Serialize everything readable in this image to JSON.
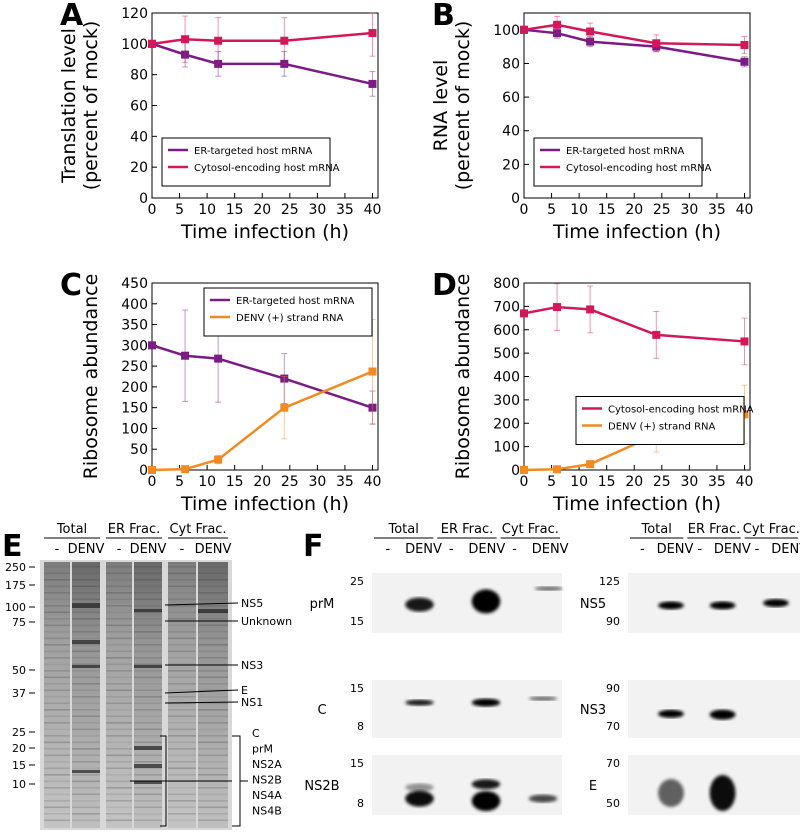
{
  "chart_data": [
    {
      "type": "line",
      "panel_label": "A",
      "ylabel": [
        "Translation level",
        "(percent of mock)"
      ],
      "xlabel": "Time infection (h)",
      "x": [
        0,
        6,
        12,
        24,
        40
      ],
      "xlim": [
        0,
        41
      ],
      "xticks": [
        0,
        5,
        10,
        15,
        20,
        25,
        30,
        35,
        40
      ],
      "ylim": [
        0,
        120
      ],
      "yticks": [
        0,
        20,
        40,
        60,
        80,
        100,
        120
      ],
      "grid": false,
      "legend": "lower left",
      "series": [
        {
          "name": "ER-targeted host mRNA",
          "color": "#7a1b86",
          "values": [
            100,
            93,
            87,
            87,
            74
          ],
          "errors": [
            0,
            8,
            8,
            8,
            8
          ]
        },
        {
          "name": "Cytosol-encoding host mRNA",
          "color": "#d2185b",
          "values": [
            100,
            103,
            102,
            102,
            107
          ],
          "errors": [
            0,
            15,
            15,
            15,
            15
          ]
        }
      ]
    },
    {
      "type": "line",
      "panel_label": "B",
      "ylabel": [
        "RNA level",
        "(percent of mock)"
      ],
      "xlabel": "Time infection (h)",
      "x": [
        0,
        6,
        12,
        24,
        40
      ],
      "xlim": [
        0,
        41
      ],
      "xticks": [
        0,
        5,
        10,
        15,
        20,
        25,
        30,
        35,
        40
      ],
      "ylim": [
        0,
        110
      ],
      "yticks": [
        0,
        20,
        40,
        60,
        80,
        100
      ],
      "grid": false,
      "legend": "lower left",
      "series": [
        {
          "name": "ER-targeted host mRNA",
          "color": "#7a1b86",
          "values": [
            100,
            98,
            93,
            90,
            81
          ],
          "errors": [
            2,
            3,
            3,
            3,
            3
          ]
        },
        {
          "name": "Cytosol-encoding host mRNA",
          "color": "#d2185b",
          "values": [
            100,
            103,
            99,
            92,
            91
          ],
          "errors": [
            2,
            5,
            5,
            5,
            5
          ]
        }
      ]
    },
    {
      "type": "line",
      "panel_label": "C",
      "ylabel": [
        "Ribosome abundance"
      ],
      "xlabel": "Time infection (h)",
      "x": [
        0,
        6,
        12,
        24,
        40
      ],
      "xlim": [
        0,
        41
      ],
      "xticks": [
        0,
        5,
        10,
        15,
        20,
        25,
        30,
        35,
        40
      ],
      "ylim": [
        0,
        450
      ],
      "yticks": [
        0,
        50,
        100,
        150,
        200,
        250,
        300,
        350,
        400,
        450
      ],
      "grid": false,
      "legend": "upper right",
      "series": [
        {
          "name": "ER-targeted host mRNA",
          "color": "#7a1b86",
          "values": [
            300,
            275,
            268,
            220,
            150
          ],
          "errors": [
            0,
            110,
            105,
            60,
            40
          ]
        },
        {
          "name": "DENV (+) strand RNA",
          "color": "#f28a22",
          "values": [
            0,
            2,
            25,
            150,
            237
          ],
          "errors": [
            0,
            3,
            10,
            75,
            125
          ]
        }
      ]
    },
    {
      "type": "line",
      "panel_label": "D",
      "ylabel": [
        "Ribosome abundance"
      ],
      "xlabel": "Time infection (h)",
      "x": [
        0,
        6,
        12,
        24,
        40
      ],
      "xlim": [
        0,
        41
      ],
      "xticks": [
        0,
        5,
        10,
        15,
        20,
        25,
        30,
        35,
        40
      ],
      "ylim": [
        0,
        800
      ],
      "yticks": [
        0,
        100,
        200,
        300,
        400,
        500,
        600,
        700,
        800
      ],
      "grid": false,
      "legend": "center right",
      "series": [
        {
          "name": "Cytosol-encoding host mRNA",
          "color": "#d2185b",
          "values": [
            670,
            697,
            687,
            578,
            550
          ],
          "errors": [
            0,
            100,
            100,
            100,
            100
          ]
        },
        {
          "name": "DENV (+) strand RNA",
          "color": "#f28a22",
          "values": [
            0,
            3,
            25,
            152,
            238
          ],
          "errors": [
            0,
            3,
            10,
            75,
            125
          ]
        }
      ]
    }
  ],
  "gel": {
    "panel_label": "E",
    "headers": [
      "Total",
      "ER Frac.",
      "Cyt Frac."
    ],
    "lanes": [
      "-",
      "DENV",
      "-",
      "DENV",
      "-",
      "DENV"
    ],
    "ladder": [
      "250",
      "175",
      "100",
      "75",
      "50",
      "37",
      "25",
      "20",
      "15",
      "10"
    ],
    "bands": [
      "NS5",
      "Unknown",
      "NS3",
      "E",
      "NS1"
    ],
    "bracket": [
      "C",
      "prM",
      "NS2A",
      "NS2B",
      "NS4A",
      "NS4B"
    ]
  },
  "blots": {
    "panel_label": "F",
    "groups": [
      {
        "headers": [
          "Total",
          "ER Frac.",
          "Cyt Frac."
        ],
        "lanes": [
          "-",
          "DENV",
          "-",
          "DENV",
          "-",
          "DENV"
        ],
        "rows": [
          {
            "label": "prM",
            "ticks": [
              "25",
              "15"
            ]
          },
          {
            "label": "C",
            "ticks": [
              "15",
              "8"
            ]
          },
          {
            "label": "NS2B",
            "ticks": [
              "15",
              "8"
            ]
          }
        ]
      },
      {
        "headers": [
          "Total",
          "ER Frac.",
          "Cyt Frac."
        ],
        "lanes": [
          "-",
          "DENV",
          "-",
          "DENV",
          "-",
          "DENV"
        ],
        "rows": [
          {
            "label": "NS5",
            "ticks": [
              "125",
              "90"
            ]
          },
          {
            "label": "NS3",
            "ticks": [
              "90",
              "70"
            ]
          },
          {
            "label": "E",
            "ticks": [
              "70",
              "50"
            ]
          }
        ]
      }
    ]
  }
}
